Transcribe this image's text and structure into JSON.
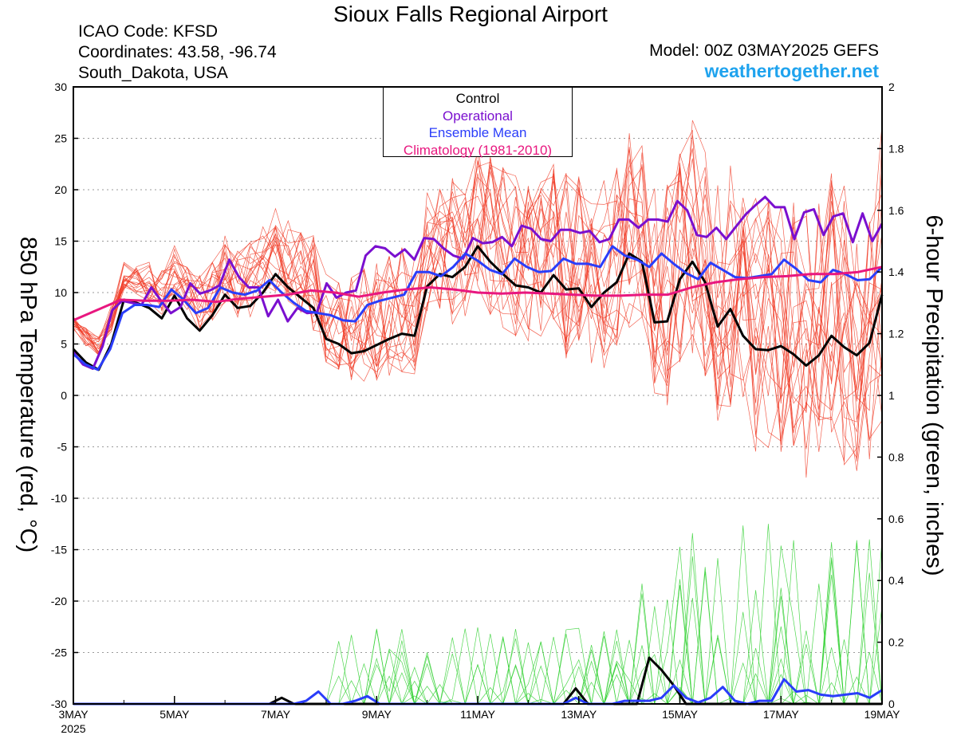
{
  "header": {
    "title": "Sioux Falls Regional Airport",
    "icao": "ICAO Code: KFSD",
    "coordinates": "Coordinates: 43.58, -96.74",
    "region": "South_Dakota, USA",
    "model": "Model: 00Z 03MAY2025 GEFS",
    "website": "weathertogether.net"
  },
  "legend": {
    "control": "Control",
    "operational": "Operational",
    "ensemble_mean": "Ensemble Mean",
    "climatology": "Climatology (1981-2010)"
  },
  "colors": {
    "control": "#000000",
    "operational": "#7a0fcf",
    "ensemble_mean": "#2a3dfa",
    "climatology": "#e8177f",
    "member_temp": "#f03a24",
    "member_precip": "#30d030",
    "website": "#1fa3ee"
  },
  "chart_data": {
    "type": "line",
    "x_tick_labels": [
      "3MAY",
      "5MAY",
      "7MAY",
      "9MAY",
      "11MAY",
      "13MAY",
      "15MAY",
      "17MAY",
      "19MAY"
    ],
    "x_year_label": "2025",
    "x_range_days": [
      0,
      16
    ],
    "y_left_label": "850 hPa Temperature (red, °C)",
    "y_left_range": [
      -30,
      30
    ],
    "y_left_ticks": [
      -30,
      -25,
      -20,
      -15,
      -10,
      -5,
      0,
      5,
      10,
      15,
      20,
      25,
      30
    ],
    "y_right_label": "6-hour Precipitation (green, inches)",
    "y_right_range": [
      0,
      2
    ],
    "y_right_ticks": [
      "0",
      "0.2",
      "0.4",
      "0.6",
      "0.8",
      "1",
      "1.2",
      "1.4",
      "1.6",
      "1.8",
      "2"
    ],
    "grid": "dotted horizontal",
    "legend_position": "top-center",
    "step_hours": 6,
    "series": [
      {
        "name": "Control",
        "kind": "temperature",
        "values": [
          4.5,
          3.2,
          2.5,
          5.0,
          9.3,
          9.0,
          8.5,
          7.5,
          9.7,
          7.5,
          6.3,
          7.8,
          9.8,
          8.5,
          8.7,
          10.0,
          11.8,
          10.5,
          9.5,
          8.5,
          5.5,
          5.0,
          4.1,
          4.3,
          4.9,
          5.5,
          6.0,
          5.8,
          10.6,
          11.8,
          11.5,
          12.5,
          14.5,
          13.0,
          11.8,
          10.7,
          10.5,
          10.0,
          11.7,
          10.3,
          10.4,
          8.6,
          10.0,
          11.0,
          13.8,
          13.0,
          7.1,
          7.2,
          11.3,
          13.0,
          11.0,
          6.7,
          8.4,
          5.8,
          4.5,
          4.4,
          4.8,
          4.0,
          2.9,
          3.9,
          5.8,
          4.7,
          3.9,
          5.1,
          9.8
        ]
      },
      {
        "name": "Operational",
        "kind": "temperature",
        "values": [
          4.2,
          3.0,
          2.6,
          4.8,
          8.3,
          9.2,
          9.0,
          8.8,
          10.5,
          9.2,
          8.0,
          8.6,
          10.9,
          9.9,
          10.2,
          10.7,
          13.2,
          11.5,
          10.5,
          10.5,
          7.7,
          9.3,
          7.2,
          8.5,
          8.0,
          8.1,
          10.9,
          9.5,
          10.0,
          10.2,
          13.6,
          14.5,
          14.3,
          13.5,
          14.2,
          13.2,
          15.3,
          15.2,
          14.3,
          13.6,
          13.3,
          15.3,
          14.8,
          14.9,
          15.4,
          14.5,
          16.5,
          16.2,
          15.2,
          15.0,
          16.1,
          16.1,
          15.8,
          16.0,
          14.9,
          15.2,
          17.1,
          17.1,
          16.3,
          17.1,
          17.1,
          16.9,
          18.9,
          18.0,
          15.6,
          15.4,
          16.3,
          15.2,
          16.4,
          17.6,
          18.5,
          19.3,
          18.3,
          18.3,
          15.2,
          17.8,
          18.1,
          15.6,
          17.4,
          17.7,
          14.9,
          17.7,
          15.0,
          16.7
        ]
      },
      {
        "name": "Ensemble Mean",
        "kind": "temperature",
        "values": [
          4.0,
          3.0,
          2.5,
          4.5,
          8.0,
          8.8,
          8.8,
          8.6,
          10.3,
          9.3,
          8.0,
          8.5,
          10.5,
          10.0,
          9.8,
          10.2,
          11.2,
          10.0,
          9.0,
          8.2,
          8.0,
          7.8,
          7.3,
          7.2,
          8.8,
          9.2,
          9.5,
          9.8,
          12.0,
          12.0,
          11.6,
          12.5,
          13.8,
          13.1,
          12.2,
          11.8,
          13.3,
          12.5,
          12.0,
          12.1,
          13.3,
          12.8,
          12.8,
          12.5,
          14.5,
          13.6,
          13.2,
          12.5,
          13.8,
          12.8,
          11.9,
          11.3,
          12.9,
          12.2,
          11.5,
          11.4,
          11.6,
          11.8,
          13.2,
          12.3,
          11.2,
          11.0,
          12.2,
          11.8,
          11.2,
          11.3,
          12.5
        ]
      },
      {
        "name": "Climatology (1981-2010)",
        "kind": "temperature",
        "values": [
          7.3,
          8.3,
          9.3,
          9.2,
          9.2,
          9.3,
          9.1,
          9.4,
          9.6,
          9.8,
          10.2,
          10.0,
          9.6,
          10.0,
          10.3,
          10.5,
          10.3,
          10.0,
          9.9,
          10.0,
          9.9,
          9.8,
          9.7,
          9.7,
          9.8,
          9.8,
          10.5,
          11.0,
          11.3,
          11.5,
          11.6,
          11.8,
          11.8,
          12.0,
          12.5
        ]
      },
      {
        "name": "Control",
        "kind": "precipitation",
        "values": [
          0,
          0,
          0,
          0,
          0,
          0,
          0,
          0,
          0,
          0,
          0,
          0,
          0,
          0,
          0,
          0,
          0,
          0.02,
          0,
          0,
          0,
          0,
          0,
          0,
          0,
          0,
          0,
          0,
          0,
          0,
          0,
          0,
          0,
          0,
          0,
          0,
          0,
          0,
          0,
          0,
          0,
          0.05,
          0,
          0,
          0,
          0,
          0,
          0.15,
          0.11,
          0.06,
          0,
          0,
          0,
          0,
          0,
          0,
          0,
          0,
          0,
          0,
          0,
          0,
          0,
          0,
          0,
          0,
          0
        ]
      },
      {
        "name": "Ensemble Mean",
        "kind": "precipitation",
        "values": [
          0,
          0,
          0,
          0,
          0,
          0,
          0,
          0,
          0,
          0,
          0,
          0,
          0,
          0,
          0,
          0,
          0,
          0,
          0,
          0.01,
          0.04,
          0,
          0,
          0.01,
          0.025,
          0,
          0,
          0,
          0,
          0,
          0,
          0,
          0,
          0,
          0,
          0,
          0,
          0,
          0,
          0,
          0,
          0.02,
          0,
          0,
          0,
          0.01,
          0.01,
          0.01,
          0.02,
          0.06,
          0.02,
          0.005,
          0.02,
          0.055,
          0.01,
          0,
          0.01,
          0.01,
          0.08,
          0.04,
          0.045,
          0.03,
          0.025,
          0.03,
          0.035,
          0.02,
          0.045
        ]
      }
    ]
  }
}
